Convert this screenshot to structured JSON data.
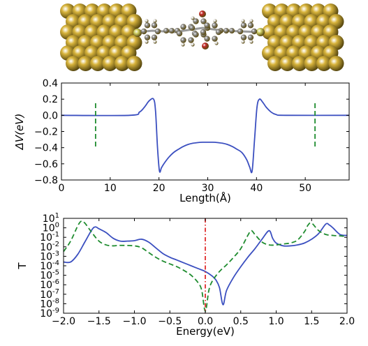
{
  "molecule": {
    "sulfur_color": "#d4d66a",
    "gold_color": "#d8b43c",
    "carbon_color": "#8c8c8c",
    "hydrogen_color": "#e6e6e6",
    "oxygen_color": "#c42a2a"
  },
  "chart_data": [
    {
      "type": "line",
      "xlabel": "Length(Å)",
      "ylabel": "ΔV(eV)",
      "xlim": [
        0,
        59
      ],
      "ylim": [
        -0.8,
        0.4
      ],
      "xticks": [
        0,
        10,
        20,
        30,
        40,
        50
      ],
      "yticks": [
        0.4,
        0.2,
        0.0,
        -0.2,
        -0.4,
        -0.6,
        -0.8
      ],
      "xtick_labels": [
        "0",
        "10",
        "20",
        "30",
        "40",
        "50"
      ],
      "ytick_labels": [
        "0.4",
        "0.2",
        "0.0",
        "−0.2",
        "−0.4",
        "−0.6",
        "−0.8"
      ],
      "grid": false,
      "series": [
        {
          "color": "#3b4fc0",
          "style": "solid",
          "x": [
            0,
            14,
            16,
            17,
            18,
            18.9,
            19.3,
            19.7,
            20.1,
            20.5,
            21,
            22,
            23,
            24,
            25,
            26,
            27,
            28,
            29,
            30,
            31,
            32,
            33,
            34,
            35,
            36,
            37,
            38,
            38.6,
            39.1,
            39.6,
            40.1,
            40.6,
            41.3,
            42,
            43,
            44,
            46,
            59
          ],
          "y": [
            0,
            0,
            0.04,
            0.1,
            0.18,
            0.2,
            0.05,
            -0.4,
            -0.69,
            -0.65,
            -0.6,
            -0.52,
            -0.46,
            -0.42,
            -0.385,
            -0.36,
            -0.345,
            -0.337,
            -0.333,
            -0.333,
            -0.333,
            -0.337,
            -0.345,
            -0.36,
            -0.385,
            -0.42,
            -0.46,
            -0.55,
            -0.64,
            -0.69,
            -0.3,
            0.1,
            0.2,
            0.16,
            0.1,
            0.04,
            0.01,
            0,
            0
          ]
        },
        {
          "color": "#1f8c2f",
          "style": "dashed",
          "x": [
            7,
            7
          ],
          "y": [
            0.15,
            -0.4
          ]
        },
        {
          "color": "#1f8c2f",
          "style": "dashed",
          "x": [
            52,
            52
          ],
          "y": [
            0.15,
            -0.4
          ]
        }
      ]
    },
    {
      "type": "line",
      "xlabel": "Energy(eV)",
      "ylabel": "T",
      "xlim": [
        -2.0,
        2.0
      ],
      "ylim": [
        -9,
        1
      ],
      "yscale": "log",
      "xticks": [
        -2.0,
        -1.5,
        -1.0,
        -0.5,
        0.0,
        0.5,
        1.0,
        1.5,
        2.0
      ],
      "xtick_labels": [
        "−2.0",
        "−1.5",
        "−1.0",
        "−0.5",
        "0.0",
        "0.5",
        "1.0",
        "1.5",
        "2.0"
      ],
      "yticks": [
        1,
        0,
        -1,
        -2,
        -3,
        -4,
        -5,
        -6,
        -7,
        -8,
        -9
      ],
      "ytick_labels": [
        "1",
        "0",
        "-1",
        "-2",
        "-3",
        "-4",
        "-5",
        "-6",
        "-7",
        "-8",
        "-9"
      ],
      "ytick_base": "10",
      "grid": false,
      "series": [
        {
          "color": "#3b4fc0",
          "style": "solid",
          "x": [
            -2.0,
            -1.9,
            -1.8,
            -1.7,
            -1.6,
            -1.55,
            -1.5,
            -1.4,
            -1.3,
            -1.2,
            -1.1,
            -1.0,
            -0.9,
            -0.8,
            -0.7,
            -0.6,
            -0.5,
            -0.4,
            -0.3,
            -0.2,
            -0.1,
            0.0,
            0.1,
            0.15,
            0.2,
            0.25,
            0.3,
            0.4,
            0.5,
            0.6,
            0.7,
            0.8,
            0.9,
            0.95,
            1.0,
            1.1,
            1.2,
            1.3,
            1.4,
            1.5,
            1.6,
            1.7,
            1.75,
            1.8,
            1.9,
            2.0
          ],
          "y": [
            -3.6,
            -3.6,
            -2.8,
            -1.5,
            -0.2,
            0.1,
            -0.1,
            -0.5,
            -1.1,
            -1.4,
            -1.4,
            -1.35,
            -1.2,
            -1.5,
            -2.1,
            -2.7,
            -3.1,
            -3.4,
            -3.7,
            -4.0,
            -4.3,
            -4.6,
            -5.1,
            -5.5,
            -6.3,
            -8.1,
            -6.6,
            -5.2,
            -4.1,
            -3.1,
            -2.2,
            -1.2,
            -0.3,
            -1.1,
            -1.6,
            -1.9,
            -1.9,
            -1.8,
            -1.6,
            -1.2,
            -0.6,
            0.4,
            0.3,
            0.0,
            -0.7,
            -0.8
          ]
        },
        {
          "color": "#1f8c2f",
          "style": "dashed",
          "x": [
            -2.0,
            -1.9,
            -1.8,
            -1.75,
            -1.7,
            -1.6,
            -1.5,
            -1.4,
            -1.3,
            -1.2,
            -1.0,
            -0.9,
            -0.8,
            -0.7,
            -0.6,
            -0.5,
            -0.4,
            -0.3,
            -0.2,
            -0.1,
            -0.05,
            0.0,
            0.05,
            0.1,
            0.2,
            0.3,
            0.4,
            0.5,
            0.6,
            0.65,
            0.7,
            0.8,
            0.9,
            1.0,
            1.1,
            1.2,
            1.3,
            1.4,
            1.45,
            1.5,
            1.6,
            1.7,
            1.8,
            1.9,
            2.0
          ],
          "y": [
            -2.5,
            -1.4,
            0.2,
            0.7,
            0.5,
            -0.5,
            -1.4,
            -1.8,
            -1.9,
            -1.85,
            -1.9,
            -2.1,
            -2.6,
            -3.1,
            -3.5,
            -3.8,
            -4.1,
            -4.5,
            -5.0,
            -5.8,
            -6.6,
            -8.8,
            -6.6,
            -5.6,
            -4.6,
            -3.9,
            -3.1,
            -2.2,
            -0.8,
            -0.3,
            -0.7,
            -1.5,
            -1.8,
            -1.8,
            -1.7,
            -1.6,
            -1.3,
            -0.4,
            0.3,
            0.5,
            -0.3,
            -0.7,
            -0.8,
            -0.85,
            -0.9
          ]
        },
        {
          "color": "#e02b2b",
          "style": "dashdot",
          "x": [
            0.0,
            0.0
          ],
          "y": [
            1,
            -9
          ]
        }
      ]
    }
  ]
}
